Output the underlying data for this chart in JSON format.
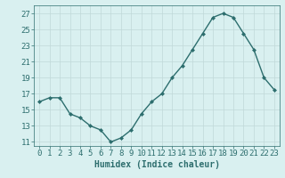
{
  "x": [
    0,
    1,
    2,
    3,
    4,
    5,
    6,
    7,
    8,
    9,
    10,
    11,
    12,
    13,
    14,
    15,
    16,
    17,
    18,
    19,
    20,
    21,
    22,
    23
  ],
  "y": [
    16.0,
    16.5,
    16.5,
    14.5,
    14.0,
    13.0,
    12.5,
    11.0,
    11.5,
    12.5,
    14.5,
    16.0,
    17.0,
    19.0,
    20.5,
    22.5,
    24.5,
    26.5,
    27.0,
    26.5,
    24.5,
    22.5,
    19.0,
    17.5
  ],
  "line_color": "#2d6e6e",
  "marker": "D",
  "marker_size": 2,
  "bg_color": "#d9f0f0",
  "grid_color": "#c0d8d8",
  "xlabel": "Humidex (Indice chaleur)",
  "xlim": [
    -0.5,
    23.5
  ],
  "ylim": [
    10.5,
    28
  ],
  "yticks": [
    11,
    13,
    15,
    17,
    19,
    21,
    23,
    25,
    27
  ],
  "xticks": [
    0,
    1,
    2,
    3,
    4,
    5,
    6,
    7,
    8,
    9,
    10,
    11,
    12,
    13,
    14,
    15,
    16,
    17,
    18,
    19,
    20,
    21,
    22,
    23
  ],
  "tick_color": "#2d6e6e",
  "label_color": "#2d6e6e",
  "xlabel_fontsize": 7,
  "tick_fontsize": 6.5,
  "linewidth": 1.0
}
